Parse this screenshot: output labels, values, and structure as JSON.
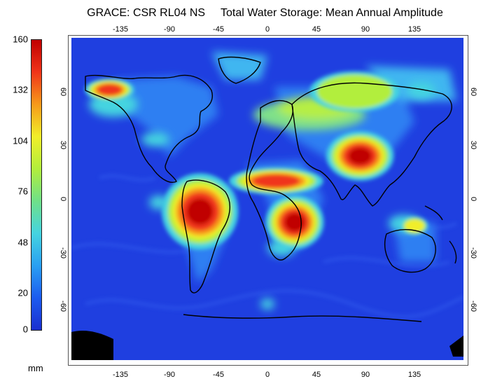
{
  "title": "GRACE: CSR RL04 NS     Total Water Storage: Mean Annual Amplitude",
  "colorbar": {
    "unit": "mm",
    "min": 0,
    "max": 160,
    "labels": [
      "160",
      "132",
      "104",
      "76",
      "48",
      "20",
      "0"
    ],
    "label_values": [
      160,
      132,
      104,
      76,
      48,
      20,
      0
    ],
    "stops": [
      "#1a2fd0",
      "#1c5cf0",
      "#2aa0f2",
      "#45d4e0",
      "#6fe089",
      "#b2ee3c",
      "#f1ee2a",
      "#f79a1a",
      "#f0341a",
      "#c00000"
    ]
  },
  "axes": {
    "longitude_ticks": [
      "-135",
      "-90",
      "-45",
      "0",
      "45",
      "90",
      "135"
    ],
    "longitude_values": [
      -135,
      -90,
      -45,
      0,
      45,
      90,
      135
    ],
    "latitude_ticks": [
      "60",
      "30",
      "0",
      "-30",
      "-60"
    ],
    "latitude_values": [
      60,
      30,
      0,
      -30,
      -60
    ],
    "lon_range": [
      -180,
      180
    ],
    "lat_range": [
      -90,
      90
    ]
  },
  "map": {
    "ocean_color": "#1f3fe0",
    "land_outline_color": "#000000",
    "hotspots": [
      {
        "name": "Amazon basin",
        "lon": -62,
        "lat": -7,
        "level": 160
      },
      {
        "name": "Southern Alaska",
        "lon": -145,
        "lat": 61,
        "level": 140
      },
      {
        "name": "Ganges-Brahmaputra",
        "lon": 85,
        "lat": 24,
        "level": 160
      },
      {
        "name": "Congo-Zambezi",
        "lon": 25,
        "lat": -13,
        "level": 160
      },
      {
        "name": "Sahel",
        "lon": 8,
        "lat": 10,
        "level": 140
      },
      {
        "name": "Siberia",
        "lon": 80,
        "lat": 60,
        "level": 95
      },
      {
        "name": "Northern Australia",
        "lon": 135,
        "lat": -15,
        "level": 100
      }
    ]
  }
}
